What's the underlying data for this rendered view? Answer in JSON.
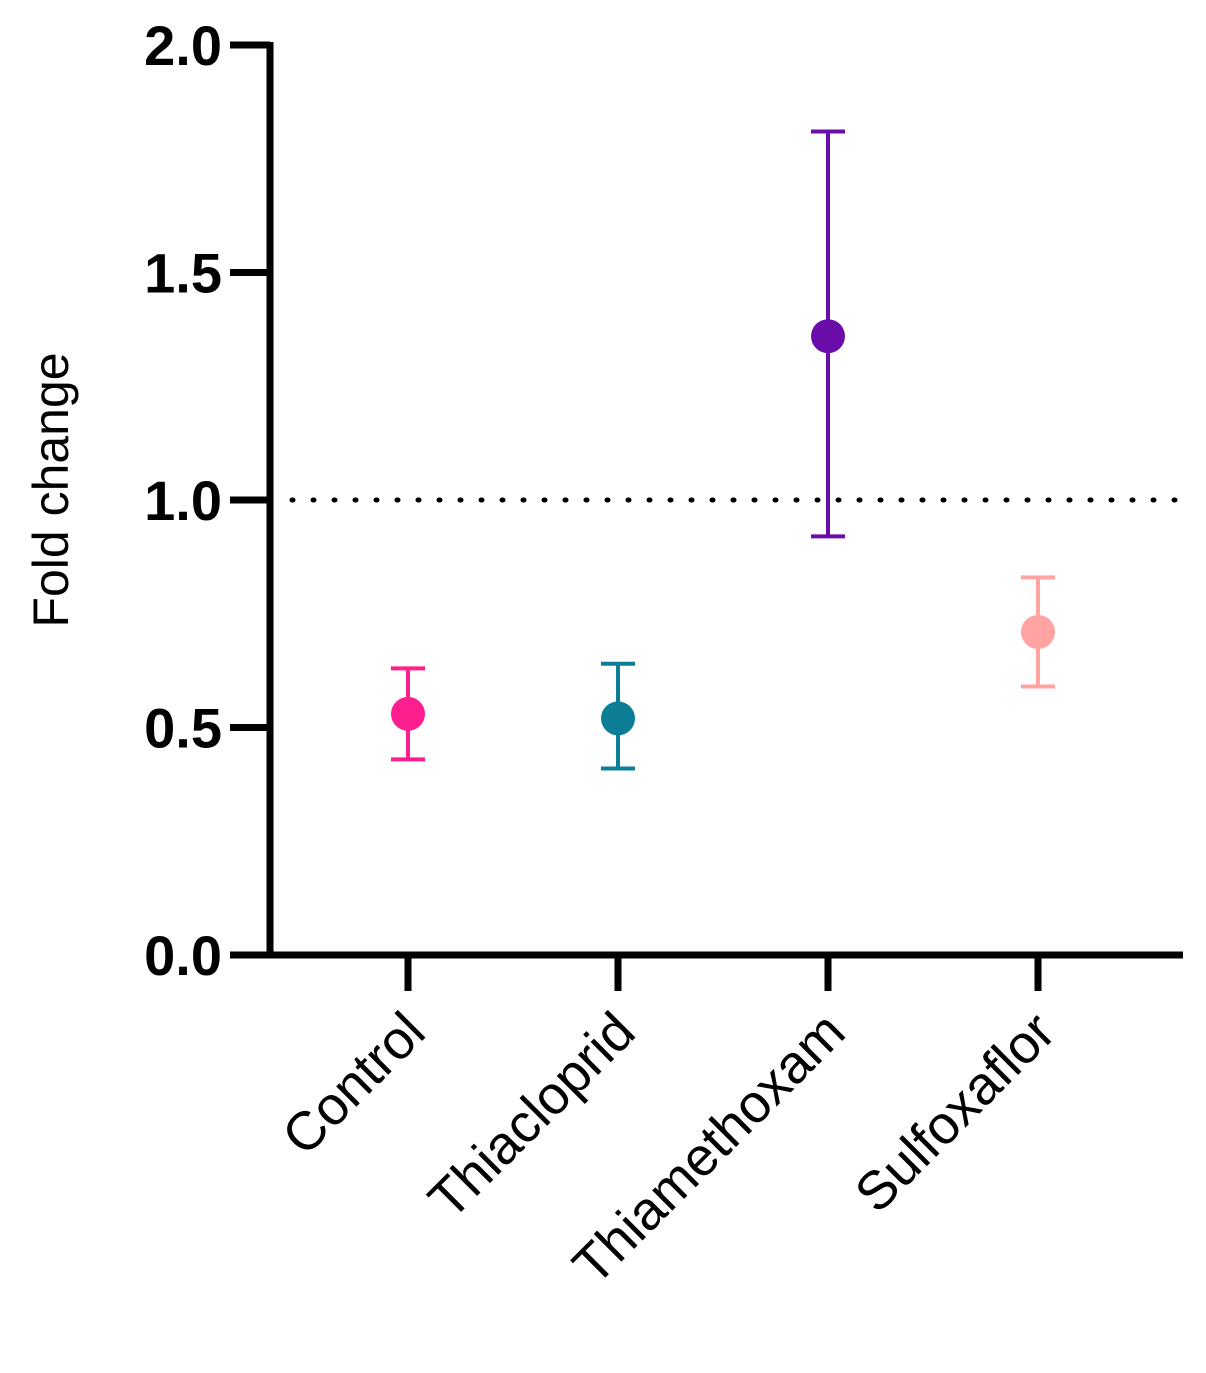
{
  "chart_data": {
    "type": "scatter",
    "ylabel": "Fold change",
    "xlabel": "",
    "title": "",
    "ylim": [
      0.0,
      2.0
    ],
    "yticks": [
      "0.0",
      "0.5",
      "1.0",
      "1.5",
      "2.0"
    ],
    "reference_line": {
      "y": 1.0,
      "style": "dotted"
    },
    "categories": [
      "Control",
      "Thiacloprid",
      "Thiamethoxam",
      "Sulfoxaflor"
    ],
    "points": [
      {
        "category": "Control",
        "value": 0.53,
        "error_low": 0.43,
        "error_high": 0.63,
        "color": "#ff1f8e"
      },
      {
        "category": "Thiacloprid",
        "value": 0.52,
        "error_low": 0.41,
        "error_high": 0.64,
        "color": "#0b7e96"
      },
      {
        "category": "Thiamethoxam",
        "value": 1.36,
        "error_low": 0.92,
        "error_high": 1.81,
        "color": "#6a0dab"
      },
      {
        "category": "Sulfoxaflor",
        "value": 0.71,
        "error_low": 0.59,
        "error_high": 0.83,
        "color": "#ffa3a3"
      }
    ],
    "grid": false,
    "legend": "none"
  }
}
